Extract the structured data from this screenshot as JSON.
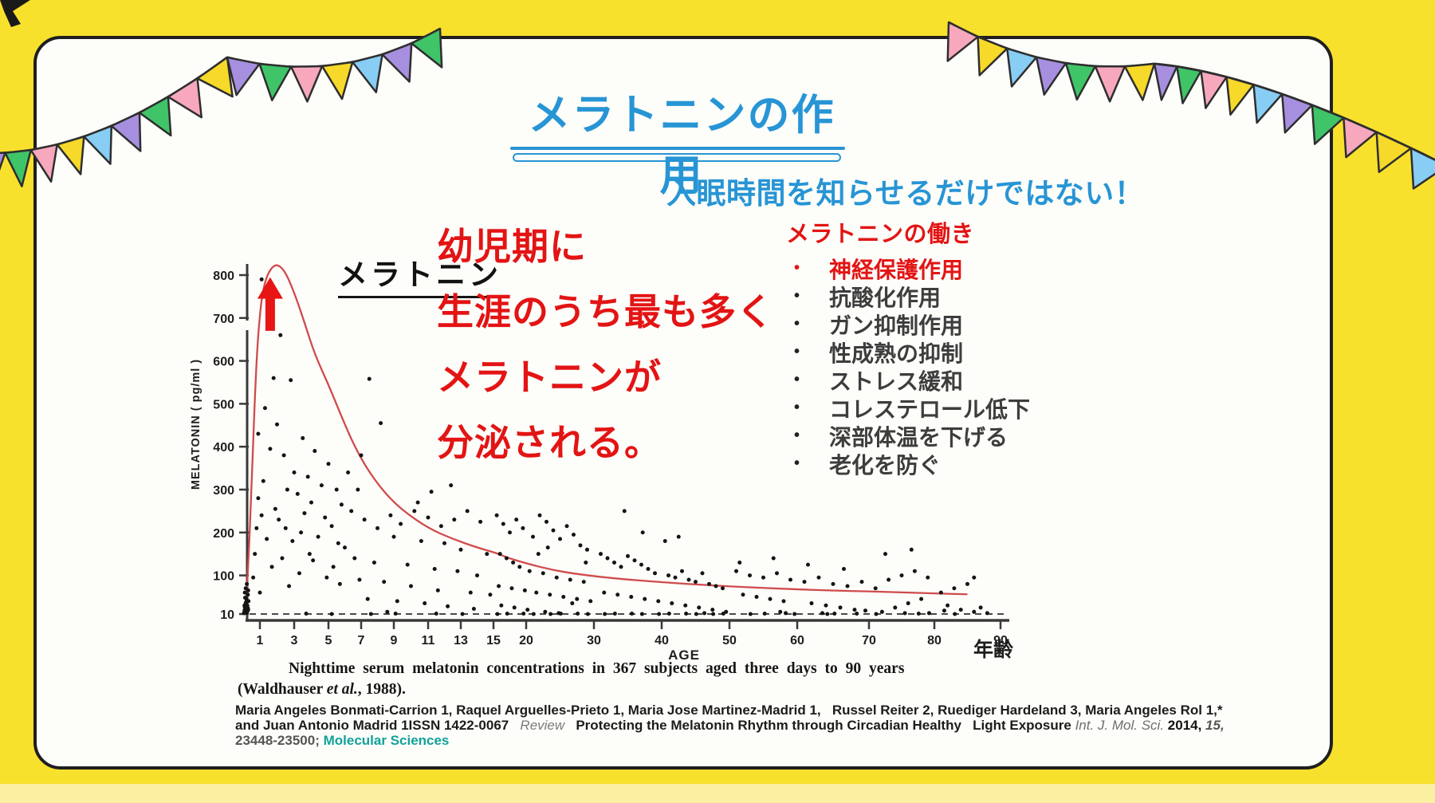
{
  "theme": {
    "bg": "#f8e12d",
    "bg_band": "#fbf0a2",
    "card": "#fdfdfa",
    "card_border": "#1f1f1f",
    "accent": "#2795d5",
    "red": "#e31414",
    "ink": "#1c1c1c",
    "gray": "#3d3d3d",
    "teal": "#12a19b",
    "curve": "#cf4b4b",
    "arrow": "#e81515",
    "dot": "#141414",
    "outline": "#2e2e2e"
  },
  "header": {
    "title": "メラトニンの作用"
  },
  "subtitle": {
    "text": "入眠時間を知らせるだけではない！"
  },
  "highlight": {
    "color": "#e31414",
    "lines": [
      "幼児期に",
      "生涯のうち最も多く",
      "メラトニンが",
      "分泌される。"
    ]
  },
  "functions_panel": {
    "heading": "メラトニンの働き",
    "bullet": "•",
    "items": [
      {
        "label": "神経保護作用",
        "emphasis": "red"
      },
      {
        "label": "抗酸化作用",
        "emphasis": "normal"
      },
      {
        "label": "ガン抑制作用",
        "emphasis": "normal"
      },
      {
        "label": "性成熟の抑制",
        "emphasis": "normal"
      },
      {
        "label": "ストレス緩和",
        "emphasis": "normal"
      },
      {
        "label": "コレステロール低下",
        "emphasis": "normal"
      },
      {
        "label": "深部体温を下げる",
        "emphasis": "normal"
      },
      {
        "label": "老化を防ぐ",
        "emphasis": "normal"
      }
    ]
  },
  "chart_data": {
    "type": "scatter",
    "title": "メラトニン",
    "xlabel": "AGE",
    "xlabel_jp": "年齢",
    "ylabel": "MELATONIN ( pg/ml )",
    "n_subjects": 367,
    "x_ticks": [
      1,
      3,
      5,
      7,
      9,
      11,
      13,
      15,
      20,
      30,
      40,
      50,
      60,
      70,
      80,
      90
    ],
    "y_ticks": [
      10,
      100,
      200,
      300,
      400,
      500,
      600,
      700,
      800
    ],
    "xlim": [
      0,
      90
    ],
    "ylim": [
      10,
      830
    ],
    "dashed_baseline_value": 10,
    "grid": false,
    "annotations": {
      "peak_arrow": {
        "age": 1.6,
        "from_value": 670,
        "to_value": 795
      }
    },
    "trend_curve": {
      "points": [
        [
          0.15,
          15
        ],
        [
          0.3,
          120
        ],
        [
          0.5,
          300
        ],
        [
          0.7,
          520
        ],
        [
          0.9,
          670
        ],
        [
          1.2,
          780
        ],
        [
          1.8,
          828
        ],
        [
          2.4,
          815
        ],
        [
          3,
          760
        ],
        [
          3.6,
          690
        ],
        [
          4.2,
          615
        ],
        [
          5,
          545
        ],
        [
          5.8,
          470
        ],
        [
          6.6,
          400
        ],
        [
          7.5,
          340
        ],
        [
          8.5,
          290
        ],
        [
          9.5,
          252
        ],
        [
          11,
          210
        ],
        [
          12.5,
          185
        ],
        [
          14,
          165
        ],
        [
          15.5,
          152
        ],
        [
          17,
          142
        ],
        [
          20,
          128
        ],
        [
          24,
          112
        ],
        [
          28,
          102
        ],
        [
          33,
          93
        ],
        [
          40,
          84
        ],
        [
          48,
          76
        ],
        [
          56,
          70
        ],
        [
          64,
          65
        ],
        [
          72,
          62
        ],
        [
          80,
          58
        ],
        [
          85,
          56
        ]
      ]
    },
    "scatter": {
      "points": [
        [
          0.05,
          12
        ],
        [
          0.08,
          18
        ],
        [
          0.1,
          25
        ],
        [
          0.12,
          15
        ],
        [
          0.15,
          35
        ],
        [
          0.18,
          22
        ],
        [
          0.2,
          45
        ],
        [
          0.22,
          13
        ],
        [
          0.25,
          30
        ],
        [
          0.28,
          55
        ],
        [
          0.3,
          20
        ],
        [
          0.32,
          40
        ],
        [
          0.1,
          60
        ],
        [
          0.15,
          70
        ],
        [
          0.2,
          28
        ],
        [
          0.25,
          16
        ],
        [
          0.3,
          65
        ],
        [
          0.12,
          48
        ],
        [
          0.22,
          80
        ],
        [
          0.18,
          38
        ],
        [
          0.08,
          30
        ],
        [
          0.28,
          24
        ],
        [
          1.1,
          790
        ],
        [
          1.5,
          710
        ],
        [
          2.2,
          660
        ],
        [
          1.8,
          560
        ],
        [
          2.8,
          555
        ],
        [
          1.3,
          490
        ],
        [
          2.0,
          452
        ],
        [
          1.6,
          395
        ],
        [
          2.4,
          380
        ],
        [
          3.0,
          340
        ],
        [
          1.2,
          320
        ],
        [
          2.6,
          300
        ],
        [
          0.9,
          280
        ],
        [
          1.9,
          255
        ],
        [
          2.1,
          230
        ],
        [
          0.8,
          210
        ],
        [
          1.4,
          185
        ],
        [
          2.9,
          180
        ],
        [
          0.7,
          150
        ],
        [
          2.3,
          140
        ],
        [
          1.7,
          120
        ],
        [
          0.6,
          95
        ],
        [
          2.7,
          75
        ],
        [
          1.0,
          60
        ],
        [
          2.5,
          210
        ],
        [
          0.9,
          430
        ],
        [
          1.1,
          240
        ],
        [
          3.5,
          420
        ],
        [
          4.2,
          390
        ],
        [
          5.0,
          360
        ],
        [
          3.8,
          330
        ],
        [
          4.6,
          310
        ],
        [
          5.5,
          300
        ],
        [
          3.2,
          290
        ],
        [
          4.0,
          270
        ],
        [
          5.8,
          265
        ],
        [
          3.6,
          245
        ],
        [
          4.8,
          235
        ],
        [
          5.2,
          215
        ],
        [
          3.4,
          200
        ],
        [
          4.4,
          190
        ],
        [
          5.6,
          175
        ],
        [
          6.0,
          165
        ],
        [
          3.9,
          150
        ],
        [
          4.1,
          135
        ],
        [
          5.3,
          120
        ],
        [
          3.3,
          105
        ],
        [
          4.9,
          95
        ],
        [
          5.7,
          80
        ],
        [
          6.2,
          340
        ],
        [
          6.4,
          250
        ],
        [
          7.5,
          558
        ],
        [
          8.2,
          455
        ],
        [
          7.0,
          380
        ],
        [
          6.8,
          300
        ],
        [
          7.2,
          230
        ],
        [
          8.0,
          210
        ],
        [
          8.8,
          240
        ],
        [
          9.4,
          220
        ],
        [
          10.2,
          250
        ],
        [
          11.0,
          235
        ],
        [
          11.8,
          215
        ],
        [
          12.6,
          230
        ],
        [
          13.4,
          250
        ],
        [
          14.2,
          225
        ],
        [
          9.0,
          190
        ],
        [
          10.6,
          180
        ],
        [
          12.0,
          175
        ],
        [
          13.0,
          160
        ],
        [
          14.6,
          150
        ],
        [
          6.6,
          140
        ],
        [
          7.8,
          130
        ],
        [
          9.8,
          125
        ],
        [
          11.4,
          115
        ],
        [
          12.8,
          110
        ],
        [
          14.0,
          100
        ],
        [
          6.9,
          90
        ],
        [
          8.4,
          85
        ],
        [
          10.0,
          75
        ],
        [
          11.6,
          65
        ],
        [
          13.6,
          60
        ],
        [
          14.8,
          55
        ],
        [
          7.4,
          45
        ],
        [
          9.2,
          40
        ],
        [
          10.8,
          35
        ],
        [
          12.2,
          28
        ],
        [
          13.8,
          22
        ],
        [
          8.6,
          15
        ],
        [
          10.4,
          270
        ],
        [
          11.2,
          295
        ],
        [
          12.4,
          310
        ],
        [
          15.5,
          240
        ],
        [
          16.5,
          220
        ],
        [
          17.5,
          200
        ],
        [
          18.5,
          230
        ],
        [
          19.5,
          210
        ],
        [
          21,
          190
        ],
        [
          22,
          240
        ],
        [
          23,
          225
        ],
        [
          24,
          205
        ],
        [
          25,
          185
        ],
        [
          26,
          215
        ],
        [
          27,
          195
        ],
        [
          28,
          170
        ],
        [
          29,
          160
        ],
        [
          16,
          150
        ],
        [
          17,
          140
        ],
        [
          18,
          130
        ],
        [
          19,
          120
        ],
        [
          20.5,
          110
        ],
        [
          22.5,
          105
        ],
        [
          24.5,
          95
        ],
        [
          26.5,
          90
        ],
        [
          28.5,
          85
        ],
        [
          15.8,
          75
        ],
        [
          17.8,
          70
        ],
        [
          19.8,
          65
        ],
        [
          21.5,
          60
        ],
        [
          23.5,
          55
        ],
        [
          25.5,
          50
        ],
        [
          27.5,
          45
        ],
        [
          29.5,
          40
        ],
        [
          16.2,
          30
        ],
        [
          18.2,
          25
        ],
        [
          20.2,
          20
        ],
        [
          22.8,
          15
        ],
        [
          24.8,
          12
        ],
        [
          26.8,
          35
        ],
        [
          28.8,
          130
        ],
        [
          21.8,
          150
        ],
        [
          23.2,
          165
        ],
        [
          31,
          150
        ],
        [
          32,
          140
        ],
        [
          33,
          130
        ],
        [
          34,
          120
        ],
        [
          35,
          145
        ],
        [
          36,
          135
        ],
        [
          37,
          125
        ],
        [
          38,
          115
        ],
        [
          39,
          105
        ],
        [
          41,
          100
        ],
        [
          42,
          95
        ],
        [
          43,
          110
        ],
        [
          44,
          90
        ],
        [
          45,
          85
        ],
        [
          46,
          105
        ],
        [
          47,
          80
        ],
        [
          48,
          75
        ],
        [
          49,
          70
        ],
        [
          31.5,
          60
        ],
        [
          33.5,
          55
        ],
        [
          35.5,
          50
        ],
        [
          37.5,
          45
        ],
        [
          39.5,
          40
        ],
        [
          41.5,
          35
        ],
        [
          43.5,
          30
        ],
        [
          45.5,
          25
        ],
        [
          47.5,
          20
        ],
        [
          49.5,
          15
        ],
        [
          34.5,
          250
        ],
        [
          37.2,
          200
        ],
        [
          42.5,
          190
        ],
        [
          40.5,
          180
        ],
        [
          51,
          110
        ],
        [
          53,
          100
        ],
        [
          55,
          95
        ],
        [
          57,
          105
        ],
        [
          59,
          90
        ],
        [
          61,
          85
        ],
        [
          63,
          95
        ],
        [
          65,
          80
        ],
        [
          67,
          75
        ],
        [
          69,
          85
        ],
        [
          71,
          70
        ],
        [
          73,
          90
        ],
        [
          75,
          100
        ],
        [
          77,
          110
        ],
        [
          79,
          95
        ],
        [
          81,
          60
        ],
        [
          83,
          70
        ],
        [
          85,
          80
        ],
        [
          52,
          55
        ],
        [
          54,
          50
        ],
        [
          56,
          45
        ],
        [
          58,
          40
        ],
        [
          62,
          35
        ],
        [
          64,
          30
        ],
        [
          66,
          25
        ],
        [
          68,
          20
        ],
        [
          72,
          15
        ],
        [
          74,
          25
        ],
        [
          76,
          35
        ],
        [
          78,
          45
        ],
        [
          82,
          30
        ],
        [
          84,
          20
        ],
        [
          86,
          15
        ],
        [
          51.5,
          130
        ],
        [
          56.5,
          140
        ],
        [
          61.5,
          125
        ],
        [
          66.5,
          115
        ],
        [
          72.5,
          150
        ],
        [
          76.5,
          160
        ],
        [
          86,
          95
        ],
        [
          88,
          12
        ],
        [
          57.5,
          15
        ],
        [
          63.5,
          12
        ],
        [
          69.5,
          18
        ],
        [
          75.5,
          12
        ],
        [
          81.5,
          18
        ],
        [
          87,
          25
        ],
        [
          3.7,
          11
        ],
        [
          5.2,
          10
        ],
        [
          7.6,
          10
        ],
        [
          9.1,
          11
        ],
        [
          11.5,
          11
        ],
        [
          13.1,
          10
        ],
        [
          15.6,
          10
        ],
        [
          17.1,
          11
        ],
        [
          19.6,
          11
        ],
        [
          21.1,
          10
        ],
        [
          23.6,
          10
        ],
        [
          25.1,
          11
        ],
        [
          27.6,
          11
        ],
        [
          29.1,
          10
        ],
        [
          31.6,
          10
        ],
        [
          33.1,
          11
        ],
        [
          35.6,
          11
        ],
        [
          37.1,
          10
        ],
        [
          39.6,
          10
        ],
        [
          41.1,
          11
        ],
        [
          43.6,
          11
        ],
        [
          45.1,
          10
        ],
        [
          47.6,
          10
        ],
        [
          49.1,
          11
        ],
        [
          53.1,
          10
        ],
        [
          55.2,
          11
        ],
        [
          59.6,
          10
        ],
        [
          65.2,
          11
        ],
        [
          71.1,
          10
        ],
        [
          77.6,
          11
        ],
        [
          83.1,
          10
        ],
        [
          64.2,
          10
        ],
        [
          68.3,
          11
        ],
        [
          46.3,
          12
        ],
        [
          58.3,
          12
        ],
        [
          79.2,
          12
        ]
      ]
    }
  },
  "caption": {
    "line1": "Nighttime serum melatonin concentrations in 367 subjects aged three days to 90 years",
    "line2_pre": "(Waldhauser ",
    "line2_etal": "et al.",
    "line2_post": ", 1988)."
  },
  "citation": {
    "line1": "Maria Angeles Bonmati-Carrion 1, Raquel Arguelles-Prieto 1, Maria Jose Martinez-Madrid 1,   Russel Reiter 2, Ruediger Hardeland 3, Maria Angeles Rol 1,*",
    "line2_a": "and Juan Antonio Madrid 1ISSN 1422-0067   ",
    "line2_review": "Review",
    "line2_b": "   Protecting the Melatonin Rhythm through Circadian Healthy   ",
    "line2_c": "Light Exposure ",
    "line2_journal": "Int. J. Mol. Sci. ",
    "line2_year": "2014, ",
    "line2_vol": "15,",
    "line3_pages": "23448-23500; ",
    "line3_brand": "Molecular Sciences"
  },
  "banner": {
    "palette": {
      "purple": "#a78fe0",
      "green": "#3fc468",
      "pink": "#f7a8bd",
      "yellow": "#f6d929",
      "blue": "#87cdf4"
    },
    "flag_length": 44,
    "swags": [
      {
        "p0": [
          -25,
          192
        ],
        "p1": [
          115,
          198
        ],
        "p2": [
          285,
          72
        ],
        "colors": [
          "purple",
          "green",
          "pink",
          "yellow",
          "blue",
          "purple",
          "green",
          "pink",
          "yellow"
        ]
      },
      {
        "p0": [
          285,
          72
        ],
        "p1": [
          428,
          108
        ],
        "p2": [
          552,
          36
        ],
        "colors": [
          "purple",
          "green",
          "pink",
          "yellow",
          "blue",
          "purple",
          "green"
        ]
      },
      {
        "p0": [
          1190,
          28
        ],
        "p1": [
          1318,
          98
        ],
        "p2": [
          1448,
          80
        ],
        "colors": [
          "pink",
          "yellow",
          "blue",
          "purple",
          "green",
          "pink",
          "yellow"
        ]
      },
      {
        "p0": [
          1448,
          80
        ],
        "p1": [
          1585,
          92
        ],
        "p2": [
          1815,
          208
        ],
        "colors": [
          "purple",
          "green",
          "pink",
          "yellow",
          "blue",
          "purple",
          "green",
          "pink",
          "yellow",
          "blue"
        ]
      }
    ]
  }
}
